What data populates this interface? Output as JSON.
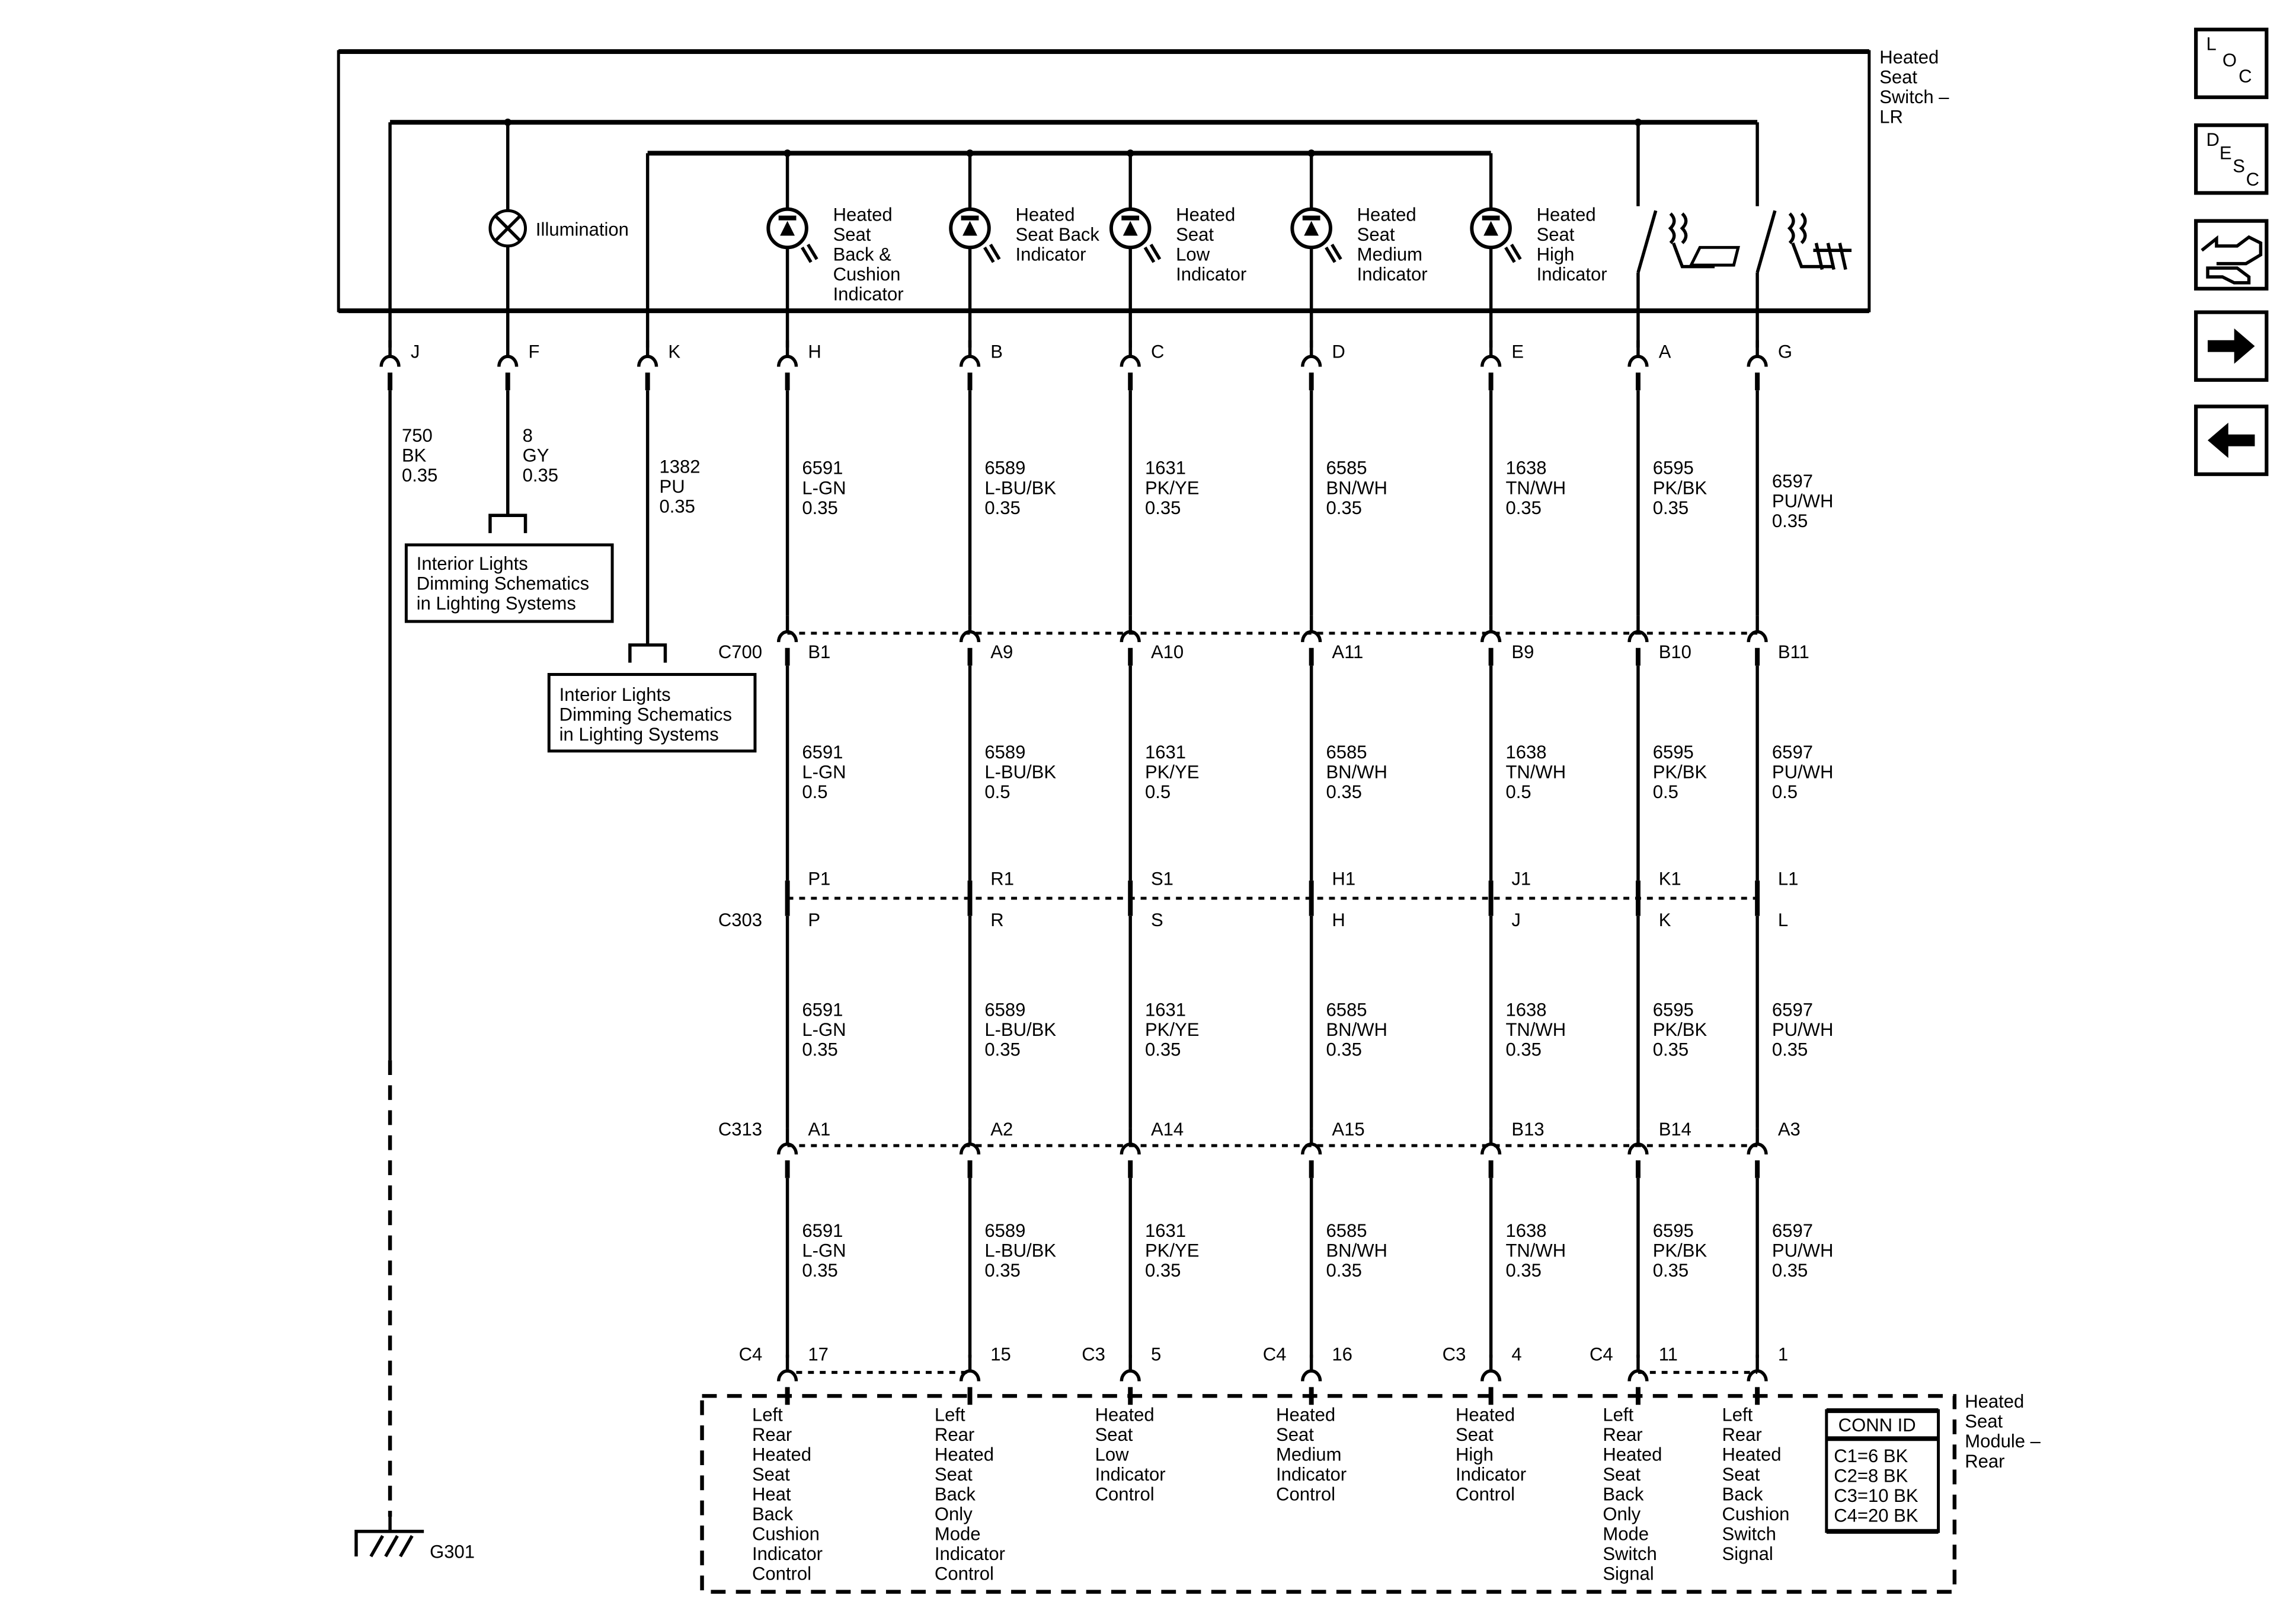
{
  "switch_title": [
    "Heated",
    "Seat",
    "Switch –",
    "LR"
  ],
  "module_title": [
    "Heated",
    "Seat",
    "Module –",
    "Rear"
  ],
  "illumination_label": "Illumination",
  "connectors": {
    "c700": "C700",
    "c303": "C303",
    "c313": "C313"
  },
  "conn_id": {
    "title": "CONN ID",
    "lines": [
      "C1=6 BK",
      "C2=8 BK",
      "C3=10 BK",
      "C4=20 BK"
    ]
  },
  "ground_label": "G301",
  "ref_boxes": [
    [
      "Interior Lights",
      "Dimming Schematics",
      "in Lighting Systems"
    ],
    [
      "Interior Lights",
      "Dimming Schematics",
      "in Lighting Systems"
    ]
  ],
  "side_icons": [
    {
      "name": "location-icon",
      "label": "LOC"
    },
    {
      "name": "description-icon",
      "label": "DESC"
    },
    {
      "name": "diagnostic-icon",
      "label": ""
    },
    {
      "name": "arrow-right-icon",
      "label": ""
    },
    {
      "name": "arrow-left-icon",
      "label": ""
    }
  ],
  "upper_columns": [
    {
      "pin": "J",
      "wire": [
        "750",
        "BK",
        "0.35"
      ]
    },
    {
      "pin": "F",
      "wire": [
        "8",
        "GY",
        "0.35"
      ]
    },
    {
      "pin": "K",
      "wire": [
        "1382",
        "PU",
        "0.35"
      ]
    }
  ],
  "columns": [
    {
      "pin": "H",
      "indicator": [
        "Heated",
        "Seat",
        "Back &",
        "Cushion",
        "Indicator"
      ],
      "w1": [
        "6591",
        "L-GN",
        "0.35"
      ],
      "c700": "B1",
      "w2": [
        "6591",
        "L-GN",
        "0.5"
      ],
      "c303_top": "P1",
      "c303": "P",
      "w3": [
        "6591",
        "L-GN",
        "0.35"
      ],
      "c313": "A1",
      "w4": [
        "6591",
        "L-GN",
        "0.35"
      ],
      "mod_conn": "C4",
      "mod_pin": "17",
      "function": [
        "Left",
        "Rear",
        "Heated",
        "Seat",
        "Heat",
        "Back",
        "Cushion",
        "Indicator",
        "Control"
      ]
    },
    {
      "pin": "B",
      "indicator": [
        "Heated",
        "Seat Back",
        "Indicator"
      ],
      "w1": [
        "6589",
        "L-BU/BK",
        "0.35"
      ],
      "c700": "A9",
      "w2": [
        "6589",
        "L-BU/BK",
        "0.5"
      ],
      "c303_top": "R1",
      "c303": "R",
      "w3": [
        "6589",
        "L-BU/BK",
        "0.35"
      ],
      "c313": "A2",
      "w4": [
        "6589",
        "L-BU/BK",
        "0.35"
      ],
      "mod_conn": "",
      "mod_pin": "15",
      "function": [
        "Left",
        "Rear",
        "Heated",
        "Seat",
        "Back",
        "Only",
        "Mode",
        "Indicator",
        "Control"
      ]
    },
    {
      "pin": "C",
      "indicator": [
        "Heated",
        "Seat",
        "Low",
        "Indicator"
      ],
      "w1": [
        "1631",
        "PK/YE",
        "0.35"
      ],
      "c700": "A10",
      "w2": [
        "1631",
        "PK/YE",
        "0.5"
      ],
      "c303_top": "S1",
      "c303": "S",
      "w3": [
        "1631",
        "PK/YE",
        "0.35"
      ],
      "c313": "A14",
      "w4": [
        "1631",
        "PK/YE",
        "0.35"
      ],
      "mod_conn": "C3",
      "mod_pin": "5",
      "function": [
        "Heated",
        "Seat",
        "Low",
        "Indicator",
        "Control"
      ]
    },
    {
      "pin": "D",
      "indicator": [
        "Heated",
        "Seat",
        "Medium",
        "Indicator"
      ],
      "w1": [
        "6585",
        "BN/WH",
        "0.35"
      ],
      "c700": "A11",
      "w2": [
        "6585",
        "BN/WH",
        "0.35"
      ],
      "c303_top": "H1",
      "c303": "H",
      "w3": [
        "6585",
        "BN/WH",
        "0.35"
      ],
      "c313": "A15",
      "w4": [
        "6585",
        "BN/WH",
        "0.35"
      ],
      "mod_conn": "C4",
      "mod_pin": "16",
      "function": [
        "Heated",
        "Seat",
        "Medium",
        "Indicator",
        "Control"
      ]
    },
    {
      "pin": "E",
      "indicator": [
        "Heated",
        "Seat",
        "High",
        "Indicator"
      ],
      "w1": [
        "1638",
        "TN/WH",
        "0.35"
      ],
      "c700": "B9",
      "w2": [
        "1638",
        "TN/WH",
        "0.5"
      ],
      "c303_top": "J1",
      "c303": "J",
      "w3": [
        "1638",
        "TN/WH",
        "0.35"
      ],
      "c313": "B13",
      "w4": [
        "1638",
        "TN/WH",
        "0.35"
      ],
      "mod_conn": "C3",
      "mod_pin": "4",
      "function": [
        "Heated",
        "Seat",
        "High",
        "Indicator",
        "Control"
      ]
    },
    {
      "pin": "A",
      "indicator": [],
      "w1": [
        "6595",
        "PK/BK",
        "0.35"
      ],
      "c700": "B10",
      "w2": [
        "6595",
        "PK/BK",
        "0.5"
      ],
      "c303_top": "K1",
      "c303": "K",
      "w3": [
        "6595",
        "PK/BK",
        "0.35"
      ],
      "c313": "B14",
      "w4": [
        "6595",
        "PK/BK",
        "0.35"
      ],
      "mod_conn": "C4",
      "mod_pin": "11",
      "function": [
        "Left",
        "Rear",
        "Heated",
        "Seat",
        "Back",
        "Only",
        "Mode",
        "Switch",
        "Signal"
      ]
    },
    {
      "pin": "G",
      "indicator": [],
      "w1": [
        "6597",
        "PU/WH",
        "0.35"
      ],
      "c700": "B11",
      "w2": [
        "6597",
        "PU/WH",
        "0.5"
      ],
      "c303_top": "L1",
      "c303": "L",
      "w3": [
        "6597",
        "PU/WH",
        "0.35"
      ],
      "c313": "A3",
      "w4": [
        "6597",
        "PU/WH",
        "0.35"
      ],
      "mod_conn": "",
      "mod_pin": "1",
      "function": [
        "Left",
        "Rear",
        "Heated",
        "Seat",
        "Back",
        "Cushion",
        "Switch",
        "Signal"
      ]
    }
  ]
}
